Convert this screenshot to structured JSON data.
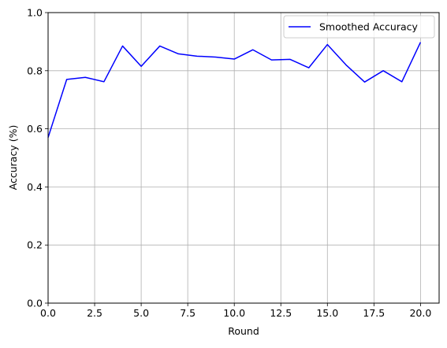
{
  "chart_data": {
    "type": "line",
    "title": "",
    "xlabel": "Round",
    "ylabel": "Accuracy (%)",
    "xlim": [
      0,
      21
    ],
    "ylim": [
      0.0,
      1.0
    ],
    "xticks": [
      0,
      2.5,
      5,
      7.5,
      10,
      12.5,
      15,
      17.5,
      20
    ],
    "xtick_labels": [
      "0.0",
      "2.5",
      "5.0",
      "7.5",
      "10.0",
      "12.5",
      "15.0",
      "17.5",
      "20.0"
    ],
    "yticks": [
      0,
      0.2,
      0.4,
      0.6,
      0.8,
      1.0
    ],
    "ytick_labels": [
      "0.0",
      "0.2",
      "0.4",
      "0.6",
      "0.8",
      "1.0"
    ],
    "grid": true,
    "legend_position": "upper-right",
    "x": [
      0,
      1,
      2,
      3,
      4,
      5,
      6,
      7,
      8,
      9,
      10,
      11,
      12,
      13,
      14,
      15,
      16,
      17,
      18,
      19,
      20
    ],
    "series": [
      {
        "name": "Smoothed Accuracy",
        "color": "#0000ff",
        "values": [
          0.57,
          0.77,
          0.777,
          0.762,
          0.885,
          0.815,
          0.885,
          0.858,
          0.85,
          0.847,
          0.84,
          0.872,
          0.837,
          0.839,
          0.81,
          0.89,
          0.82,
          0.761,
          0.8,
          0.762,
          0.898
        ]
      }
    ]
  }
}
